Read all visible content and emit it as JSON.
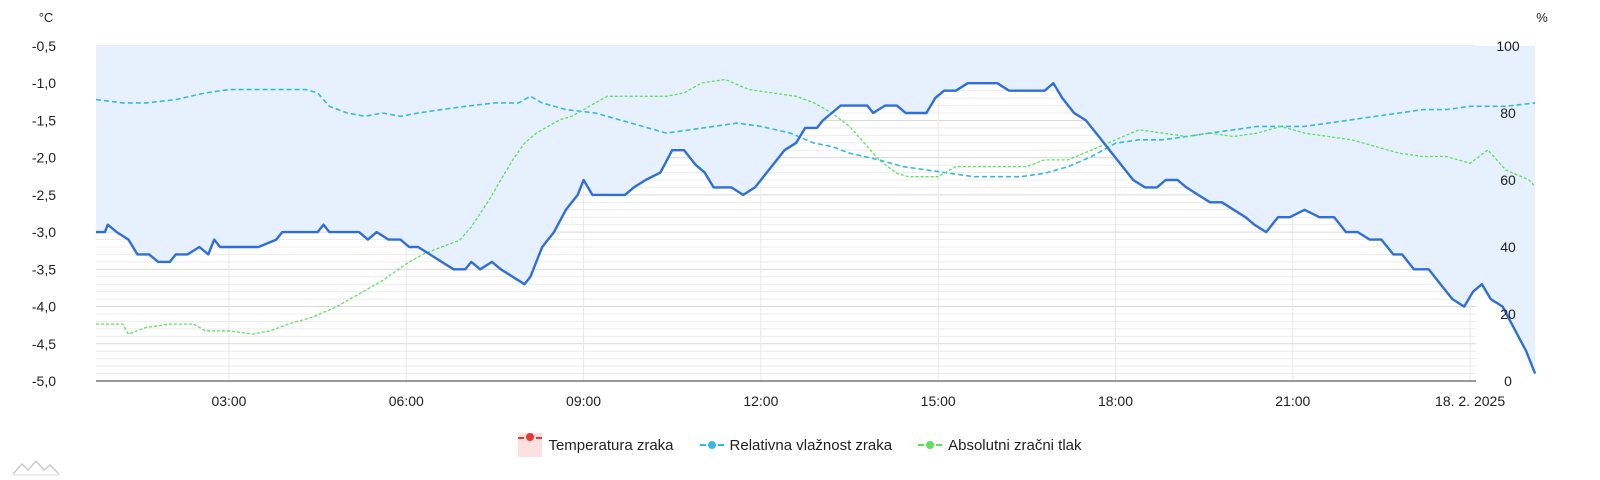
{
  "chart_data": {
    "type": "line",
    "y_left_unit": "°C",
    "y_right_unit": "%",
    "y_left_ticks": [
      "-0,5",
      "-1,0",
      "-1,5",
      "-2,0",
      "-2,5",
      "-3,0",
      "-3,5",
      "-4,0",
      "-4,5",
      "-5,0"
    ],
    "y_right_ticks": [
      "100",
      "80",
      "60",
      "40",
      "20",
      "0"
    ],
    "y_left_range": [
      -5.0,
      -0.5
    ],
    "y_right_range": [
      0,
      100
    ],
    "x_range_hours": [
      0.75,
      24.1
    ],
    "x_ticks": [
      {
        "hour": 3,
        "label": "03:00"
      },
      {
        "hour": 6,
        "label": "06:00"
      },
      {
        "hour": 9,
        "label": "09:00"
      },
      {
        "hour": 12,
        "label": "12:00"
      },
      {
        "hour": 15,
        "label": "15:00"
      },
      {
        "hour": 18,
        "label": "18:00"
      },
      {
        "hour": 21,
        "label": "21:00"
      },
      {
        "hour": 24,
        "label": "18. 2. 2025"
      }
    ],
    "grid": true,
    "legend_position": "bottom",
    "series": [
      {
        "name": "Temperatura zraka",
        "axis": "left",
        "color": "#2e6fd8",
        "fill": "#e7f0fd",
        "points": [
          [
            0.75,
            -3.0
          ],
          [
            0.9,
            -3.0
          ],
          [
            0.95,
            -2.9
          ],
          [
            1.1,
            -3.0
          ],
          [
            1.3,
            -3.1
          ],
          [
            1.45,
            -3.3
          ],
          [
            1.65,
            -3.3
          ],
          [
            1.8,
            -3.4
          ],
          [
            2.0,
            -3.4
          ],
          [
            2.1,
            -3.3
          ],
          [
            2.3,
            -3.3
          ],
          [
            2.5,
            -3.2
          ],
          [
            2.65,
            -3.3
          ],
          [
            2.75,
            -3.1
          ],
          [
            2.85,
            -3.2
          ],
          [
            3.0,
            -3.2
          ],
          [
            3.5,
            -3.2
          ],
          [
            3.8,
            -3.1
          ],
          [
            3.9,
            -3.0
          ],
          [
            4.5,
            -3.0
          ],
          [
            4.6,
            -2.9
          ],
          [
            4.7,
            -3.0
          ],
          [
            5.2,
            -3.0
          ],
          [
            5.35,
            -3.1
          ],
          [
            5.5,
            -3.0
          ],
          [
            5.7,
            -3.1
          ],
          [
            5.9,
            -3.1
          ],
          [
            6.05,
            -3.2
          ],
          [
            6.2,
            -3.2
          ],
          [
            6.4,
            -3.3
          ],
          [
            6.6,
            -3.4
          ],
          [
            6.8,
            -3.5
          ],
          [
            7.0,
            -3.5
          ],
          [
            7.1,
            -3.4
          ],
          [
            7.25,
            -3.5
          ],
          [
            7.45,
            -3.4
          ],
          [
            7.6,
            -3.5
          ],
          [
            7.8,
            -3.6
          ],
          [
            8.0,
            -3.7
          ],
          [
            8.1,
            -3.6
          ],
          [
            8.3,
            -3.2
          ],
          [
            8.5,
            -3.0
          ],
          [
            8.7,
            -2.7
          ],
          [
            8.9,
            -2.5
          ],
          [
            9.0,
            -2.3
          ],
          [
            9.15,
            -2.5
          ],
          [
            9.5,
            -2.5
          ],
          [
            9.7,
            -2.5
          ],
          [
            9.85,
            -2.4
          ],
          [
            10.05,
            -2.3
          ],
          [
            10.3,
            -2.2
          ],
          [
            10.5,
            -1.9
          ],
          [
            10.7,
            -1.9
          ],
          [
            10.9,
            -2.1
          ],
          [
            11.05,
            -2.2
          ],
          [
            11.2,
            -2.4
          ],
          [
            11.5,
            -2.4
          ],
          [
            11.7,
            -2.5
          ],
          [
            11.9,
            -2.4
          ],
          [
            12.0,
            -2.3
          ],
          [
            12.2,
            -2.1
          ],
          [
            12.4,
            -1.9
          ],
          [
            12.6,
            -1.8
          ],
          [
            12.75,
            -1.6
          ],
          [
            12.95,
            -1.6
          ],
          [
            13.05,
            -1.5
          ],
          [
            13.2,
            -1.4
          ],
          [
            13.35,
            -1.3
          ],
          [
            13.6,
            -1.3
          ],
          [
            13.8,
            -1.3
          ],
          [
            13.9,
            -1.4
          ],
          [
            14.1,
            -1.3
          ],
          [
            14.3,
            -1.3
          ],
          [
            14.45,
            -1.4
          ],
          [
            14.8,
            -1.4
          ],
          [
            14.95,
            -1.2
          ],
          [
            15.1,
            -1.1
          ],
          [
            15.3,
            -1.1
          ],
          [
            15.5,
            -1.0
          ],
          [
            15.7,
            -1.0
          ],
          [
            16.0,
            -1.0
          ],
          [
            16.2,
            -1.1
          ],
          [
            16.8,
            -1.1
          ],
          [
            16.95,
            -1.0
          ],
          [
            17.1,
            -1.2
          ],
          [
            17.3,
            -1.4
          ],
          [
            17.5,
            -1.5
          ],
          [
            17.7,
            -1.7
          ],
          [
            17.9,
            -1.9
          ],
          [
            18.1,
            -2.1
          ],
          [
            18.3,
            -2.3
          ],
          [
            18.5,
            -2.4
          ],
          [
            18.7,
            -2.4
          ],
          [
            18.85,
            -2.3
          ],
          [
            19.05,
            -2.3
          ],
          [
            19.2,
            -2.4
          ],
          [
            19.4,
            -2.5
          ],
          [
            19.6,
            -2.6
          ],
          [
            19.8,
            -2.6
          ],
          [
            20.0,
            -2.7
          ],
          [
            20.2,
            -2.8
          ],
          [
            20.35,
            -2.9
          ],
          [
            20.55,
            -3.0
          ],
          [
            20.75,
            -2.8
          ],
          [
            20.95,
            -2.8
          ],
          [
            21.2,
            -2.7
          ],
          [
            21.45,
            -2.8
          ],
          [
            21.7,
            -2.8
          ],
          [
            21.9,
            -3.0
          ],
          [
            22.1,
            -3.0
          ],
          [
            22.3,
            -3.1
          ],
          [
            22.5,
            -3.1
          ],
          [
            22.7,
            -3.3
          ],
          [
            22.85,
            -3.3
          ],
          [
            23.05,
            -3.5
          ],
          [
            23.3,
            -3.5
          ],
          [
            23.5,
            -3.7
          ],
          [
            23.7,
            -3.9
          ],
          [
            23.9,
            -4.0
          ],
          [
            24.05,
            -3.8
          ],
          [
            24.2,
            -3.7
          ],
          [
            24.35,
            -3.9
          ],
          [
            24.55,
            -4.0
          ],
          [
            24.75,
            -4.3
          ],
          [
            24.95,
            -4.6
          ],
          [
            25.1,
            -4.9
          ]
        ]
      },
      {
        "name": "Relativna vlažnost zraka",
        "axis": "right",
        "color": "#36b9e0",
        "points": [
          [
            0.75,
            84
          ],
          [
            1.2,
            83
          ],
          [
            1.6,
            83
          ],
          [
            2.1,
            84
          ],
          [
            2.6,
            86
          ],
          [
            3.0,
            87
          ],
          [
            3.5,
            87
          ],
          [
            4.0,
            87
          ],
          [
            4.3,
            87
          ],
          [
            4.5,
            86
          ],
          [
            4.7,
            82
          ],
          [
            5.0,
            80
          ],
          [
            5.3,
            79
          ],
          [
            5.6,
            80
          ],
          [
            5.9,
            79
          ],
          [
            6.2,
            80
          ],
          [
            6.6,
            81
          ],
          [
            7.0,
            82
          ],
          [
            7.5,
            83
          ],
          [
            7.9,
            83
          ],
          [
            8.1,
            85
          ],
          [
            8.3,
            83
          ],
          [
            8.7,
            81
          ],
          [
            9.2,
            80
          ],
          [
            9.6,
            78
          ],
          [
            10.0,
            76
          ],
          [
            10.4,
            74
          ],
          [
            10.8,
            75
          ],
          [
            11.2,
            76
          ],
          [
            11.6,
            77
          ],
          [
            12.0,
            76
          ],
          [
            12.5,
            74
          ],
          [
            12.9,
            71
          ],
          [
            13.2,
            70
          ],
          [
            13.5,
            68
          ],
          [
            14.0,
            66
          ],
          [
            14.4,
            64
          ],
          [
            14.8,
            63
          ],
          [
            15.2,
            62
          ],
          [
            15.6,
            61
          ],
          [
            16.0,
            61
          ],
          [
            16.4,
            61
          ],
          [
            16.8,
            62
          ],
          [
            17.2,
            64
          ],
          [
            17.6,
            67
          ],
          [
            18.0,
            71
          ],
          [
            18.4,
            72
          ],
          [
            18.8,
            72
          ],
          [
            19.2,
            73
          ],
          [
            19.6,
            74
          ],
          [
            20.0,
            75
          ],
          [
            20.4,
            76
          ],
          [
            20.8,
            76
          ],
          [
            21.2,
            76
          ],
          [
            21.6,
            77
          ],
          [
            22.0,
            78
          ],
          [
            22.4,
            79
          ],
          [
            22.8,
            80
          ],
          [
            23.2,
            81
          ],
          [
            23.6,
            81
          ],
          [
            24.0,
            82
          ],
          [
            24.3,
            82
          ],
          [
            24.6,
            82
          ],
          [
            25.1,
            83
          ]
        ]
      },
      {
        "name": "Absolutni zračni tlak",
        "axis": "right",
        "color": "#5ee05e",
        "points": [
          [
            0.75,
            17
          ],
          [
            1.2,
            17
          ],
          [
            1.3,
            14
          ],
          [
            1.6,
            16
          ],
          [
            2.0,
            17
          ],
          [
            2.4,
            17
          ],
          [
            2.6,
            15
          ],
          [
            3.0,
            15
          ],
          [
            3.4,
            14
          ],
          [
            3.7,
            15
          ],
          [
            4.0,
            17
          ],
          [
            4.4,
            19
          ],
          [
            4.8,
            22
          ],
          [
            5.2,
            26
          ],
          [
            5.6,
            30
          ],
          [
            6.0,
            35
          ],
          [
            6.3,
            38
          ],
          [
            6.6,
            40
          ],
          [
            6.9,
            42
          ],
          [
            7.1,
            46
          ],
          [
            7.4,
            54
          ],
          [
            7.6,
            60
          ],
          [
            7.8,
            66
          ],
          [
            8.0,
            71
          ],
          [
            8.2,
            74
          ],
          [
            8.4,
            76
          ],
          [
            8.6,
            78
          ],
          [
            8.8,
            79
          ],
          [
            9.0,
            81
          ],
          [
            9.2,
            83
          ],
          [
            9.4,
            85
          ],
          [
            9.6,
            85
          ],
          [
            10.0,
            85
          ],
          [
            10.4,
            85
          ],
          [
            10.7,
            86
          ],
          [
            11.0,
            89
          ],
          [
            11.4,
            90
          ],
          [
            11.8,
            87
          ],
          [
            12.2,
            86
          ],
          [
            12.6,
            85
          ],
          [
            12.9,
            83
          ],
          [
            13.2,
            80
          ],
          [
            13.5,
            76
          ],
          [
            13.8,
            70
          ],
          [
            14.0,
            66
          ],
          [
            14.3,
            62
          ],
          [
            14.5,
            61
          ],
          [
            15.0,
            61
          ],
          [
            15.3,
            64
          ],
          [
            15.6,
            64
          ],
          [
            16.0,
            64
          ],
          [
            16.5,
            64
          ],
          [
            16.8,
            66
          ],
          [
            17.2,
            66
          ],
          [
            17.6,
            69
          ],
          [
            18.0,
            72
          ],
          [
            18.4,
            75
          ],
          [
            18.8,
            74
          ],
          [
            19.2,
            73
          ],
          [
            19.6,
            74
          ],
          [
            20.0,
            73
          ],
          [
            20.4,
            74
          ],
          [
            20.8,
            76
          ],
          [
            21.2,
            74
          ],
          [
            21.6,
            73
          ],
          [
            22.0,
            72
          ],
          [
            22.4,
            70
          ],
          [
            22.8,
            68
          ],
          [
            23.2,
            67
          ],
          [
            23.6,
            67
          ],
          [
            24.0,
            65
          ],
          [
            24.3,
            69
          ],
          [
            24.6,
            63
          ],
          [
            25.0,
            60
          ],
          [
            25.1,
            58
          ]
        ]
      }
    ]
  },
  "legend": {
    "temperature": "Temperatura zraka",
    "humidity": "Relativna vlažnost zraka",
    "pressure": "Absolutni zračni tlak"
  }
}
